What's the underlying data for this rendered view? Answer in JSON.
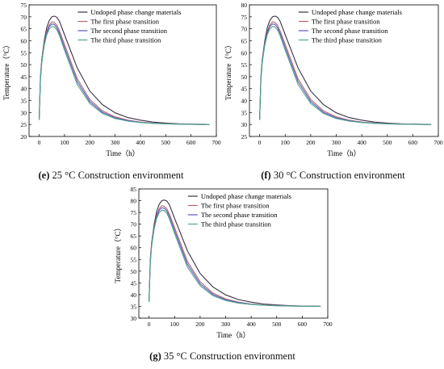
{
  "chart_data": [
    {
      "type": "line",
      "panel_id": "e",
      "caption_letter": "(e)",
      "caption_rest": " 25 °C Construction environment",
      "xlabel": "Time（h）",
      "ylabel": "Temperature（°C）",
      "xlim": [
        -40,
        700
      ],
      "ylim": [
        20,
        75
      ],
      "xticks": [
        0,
        100,
        200,
        300,
        400,
        500,
        600,
        700
      ],
      "yticks": [
        20,
        25,
        30,
        35,
        40,
        45,
        50,
        55,
        60,
        65,
        70,
        75
      ],
      "legend": "top-right",
      "series": [
        {
          "name": "Undoped phase change materials",
          "color": "#3b3145",
          "x": [
            0,
            5,
            10,
            15,
            20,
            30,
            40,
            50,
            60,
            70,
            80,
            100,
            150,
            200,
            250,
            300,
            350,
            400,
            450,
            500,
            550,
            600,
            672
          ],
          "y": [
            27,
            45,
            52,
            56,
            60,
            65.5,
            68.5,
            70,
            70.3,
            69.8,
            68.2,
            62.5,
            48.7,
            39,
            33.3,
            29.9,
            27.9,
            26.8,
            26,
            25.6,
            25.3,
            25.15,
            25.05
          ]
        },
        {
          "name": "The first phase transition",
          "color": "#b36a6a",
          "x": [
            0,
            5,
            10,
            15,
            20,
            30,
            40,
            50,
            60,
            70,
            80,
            100,
            150,
            200,
            250,
            300,
            350,
            400,
            450,
            500,
            550,
            600,
            672
          ],
          "y": [
            27,
            44.5,
            51.5,
            55.5,
            59,
            64,
            66.6,
            67.9,
            67.6,
            66.5,
            64.2,
            58.5,
            44.2,
            35.5,
            30.7,
            28.2,
            26.8,
            26,
            25.6,
            25.35,
            25.2,
            25.1,
            25
          ]
        },
        {
          "name": "The second phase transition",
          "color": "#5a58c8",
          "x": [
            0,
            5,
            10,
            15,
            20,
            30,
            40,
            50,
            60,
            70,
            80,
            100,
            150,
            200,
            250,
            300,
            350,
            400,
            450,
            500,
            550,
            600,
            672
          ],
          "y": [
            27,
            44,
            51,
            55,
            58.5,
            63.3,
            66,
            67,
            66.8,
            65.5,
            63.2,
            57.2,
            43,
            34.6,
            30.1,
            27.8,
            26.6,
            25.9,
            25.5,
            25.3,
            25.15,
            25.08,
            25
          ]
        },
        {
          "name": "The third phase transition",
          "color": "#4ea58a",
          "x": [
            0,
            5,
            10,
            15,
            20,
            30,
            40,
            50,
            60,
            70,
            80,
            100,
            150,
            200,
            250,
            300,
            350,
            400,
            450,
            500,
            550,
            600,
            672
          ],
          "y": [
            27,
            43.5,
            50.5,
            54.5,
            58,
            62.5,
            65,
            66,
            65.8,
            64.5,
            62.2,
            56,
            41.8,
            33.8,
            29.6,
            27.5,
            26.4,
            25.8,
            25.45,
            25.25,
            25.12,
            25.05,
            25
          ]
        }
      ]
    },
    {
      "type": "line",
      "panel_id": "f",
      "caption_letter": "(f)",
      "caption_rest": " 30 °C Construction environment",
      "xlabel": "Time（h）",
      "ylabel": "Temperature（°C）",
      "xlim": [
        -40,
        700
      ],
      "ylim": [
        25,
        80
      ],
      "xticks": [
        0,
        100,
        200,
        300,
        400,
        500,
        600,
        700
      ],
      "yticks": [
        25,
        30,
        35,
        40,
        45,
        50,
        55,
        60,
        65,
        70,
        75,
        80
      ],
      "legend": "top-right",
      "series": [
        {
          "name": "Undoped phase change materials",
          "color": "#3b3145",
          "x": [
            0,
            5,
            10,
            15,
            20,
            30,
            40,
            50,
            60,
            70,
            80,
            100,
            150,
            200,
            250,
            300,
            350,
            400,
            450,
            500,
            550,
            600,
            672
          ],
          "y": [
            32,
            50,
            57,
            61,
            65,
            70.5,
            73.5,
            75,
            75.3,
            74.8,
            73.2,
            67.5,
            53.7,
            44,
            38.3,
            34.9,
            32.9,
            31.8,
            31,
            30.6,
            30.3,
            30.15,
            30.05
          ]
        },
        {
          "name": "The first phase transition",
          "color": "#b36a6a",
          "x": [
            0,
            5,
            10,
            15,
            20,
            30,
            40,
            50,
            60,
            70,
            80,
            100,
            150,
            200,
            250,
            300,
            350,
            400,
            450,
            500,
            550,
            600,
            672
          ],
          "y": [
            32,
            49.5,
            56.5,
            60.5,
            64,
            69,
            71.6,
            72.9,
            72.6,
            71.5,
            69.2,
            63.5,
            49.2,
            40.5,
            35.7,
            33.2,
            31.8,
            31,
            30.6,
            30.35,
            30.2,
            30.1,
            30
          ]
        },
        {
          "name": "The second phase transition",
          "color": "#5a58c8",
          "x": [
            0,
            5,
            10,
            15,
            20,
            30,
            40,
            50,
            60,
            70,
            80,
            100,
            150,
            200,
            250,
            300,
            350,
            400,
            450,
            500,
            550,
            600,
            672
          ],
          "y": [
            32,
            49,
            56,
            60,
            63.5,
            68.3,
            71,
            72,
            71.8,
            70.5,
            68.2,
            62.2,
            48,
            39.6,
            35.1,
            32.8,
            31.6,
            30.9,
            30.5,
            30.3,
            30.15,
            30.08,
            30
          ]
        },
        {
          "name": "The third phase transition",
          "color": "#4ea58a",
          "x": [
            0,
            5,
            10,
            15,
            20,
            30,
            40,
            50,
            60,
            70,
            80,
            100,
            150,
            200,
            250,
            300,
            350,
            400,
            450,
            500,
            550,
            600,
            672
          ],
          "y": [
            32,
            48.5,
            55.5,
            59.5,
            63,
            67.5,
            70,
            71,
            70.8,
            69.5,
            67.2,
            61,
            46.8,
            38.8,
            34.6,
            32.5,
            31.4,
            30.8,
            30.45,
            30.25,
            30.12,
            30.05,
            30
          ]
        }
      ]
    },
    {
      "type": "line",
      "panel_id": "g",
      "caption_letter": "(g)",
      "caption_rest": " 35 °C Construction environment",
      "xlabel": "Time（h）",
      "ylabel": "Temperature（°C）",
      "xlim": [
        -40,
        700
      ],
      "ylim": [
        30,
        85
      ],
      "xticks": [
        0,
        100,
        200,
        300,
        400,
        500,
        600,
        700
      ],
      "yticks": [
        30,
        35,
        40,
        45,
        50,
        55,
        60,
        65,
        70,
        75,
        80,
        85
      ],
      "legend": "top-right",
      "series": [
        {
          "name": "Undoped phase change materials",
          "color": "#3b3145",
          "x": [
            0,
            5,
            10,
            15,
            20,
            30,
            40,
            50,
            60,
            70,
            80,
            100,
            150,
            200,
            250,
            300,
            350,
            400,
            450,
            500,
            550,
            600,
            672
          ],
          "y": [
            37,
            55,
            62,
            66,
            70,
            75.5,
            78.5,
            80,
            80.3,
            79.8,
            78.2,
            72.5,
            58.7,
            49,
            43.3,
            39.9,
            37.9,
            36.8,
            36,
            35.6,
            35.3,
            35.15,
            35.05
          ]
        },
        {
          "name": "The first phase transition",
          "color": "#b36a6a",
          "x": [
            0,
            5,
            10,
            15,
            20,
            30,
            40,
            50,
            60,
            70,
            80,
            100,
            150,
            200,
            250,
            300,
            350,
            400,
            450,
            500,
            550,
            600,
            672
          ],
          "y": [
            37,
            54.5,
            61.5,
            65.5,
            69,
            74,
            76.6,
            77.9,
            77.6,
            76.5,
            74.2,
            68.5,
            54.2,
            45.5,
            40.7,
            38.2,
            36.8,
            36,
            35.6,
            35.35,
            35.2,
            35.1,
            35
          ]
        },
        {
          "name": "The second phase transition",
          "color": "#5a58c8",
          "x": [
            0,
            5,
            10,
            15,
            20,
            30,
            40,
            50,
            60,
            70,
            80,
            100,
            150,
            200,
            250,
            300,
            350,
            400,
            450,
            500,
            550,
            600,
            672
          ],
          "y": [
            37,
            54,
            61,
            65,
            68.5,
            73.3,
            76,
            77,
            76.8,
            75.5,
            73.2,
            67.2,
            53,
            44.6,
            40.1,
            37.8,
            36.6,
            35.9,
            35.5,
            35.3,
            35.15,
            35.08,
            35
          ]
        },
        {
          "name": "The third phase transition",
          "color": "#4ea58a",
          "x": [
            0,
            5,
            10,
            15,
            20,
            30,
            40,
            50,
            60,
            70,
            80,
            100,
            150,
            200,
            250,
            300,
            350,
            400,
            450,
            500,
            550,
            600,
            672
          ],
          "y": [
            37,
            53.5,
            60.5,
            64.5,
            68,
            72.5,
            75,
            76,
            75.8,
            74.5,
            72.2,
            66,
            51.8,
            43.8,
            39.6,
            37.5,
            36.4,
            35.8,
            35.45,
            35.25,
            35.12,
            35.05,
            35
          ]
        }
      ]
    }
  ]
}
